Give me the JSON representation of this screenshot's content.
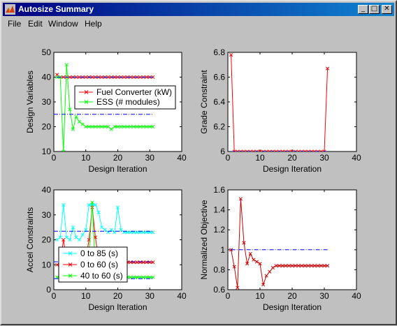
{
  "window": {
    "title": "Autosize Summary",
    "buttons": {
      "minimize": "_",
      "maximize": "□",
      "close": "✕"
    }
  },
  "menu": [
    "File",
    "Edit",
    "Window",
    "Help"
  ],
  "colors": {
    "red": "#ff0000",
    "green": "#00ff00",
    "cyan": "#00ffff",
    "blue": "#0000ff",
    "darkred": "#cc0000"
  },
  "chart_data": [
    {
      "type": "line",
      "xlabel": "Design Iteration",
      "ylabel": "Design Variables",
      "xlim": [
        0,
        40
      ],
      "ylim": [
        10,
        50
      ],
      "xticks": [
        0,
        10,
        20,
        30,
        40
      ],
      "yticks": [
        10,
        20,
        30,
        40,
        50
      ],
      "legend": {
        "placement": "right-middle",
        "entries": [
          {
            "name": "Fuel Converter (kW)",
            "color": "#ff0000"
          },
          {
            "name": "ESS (# modules)",
            "color": "#00ff00"
          }
        ]
      },
      "series": [
        {
          "name": "Fuel Converter (kW)",
          "color": "#ff0000",
          "marker": "x",
          "x": [
            1,
            2,
            3,
            4,
            5,
            6,
            7,
            8,
            9,
            10,
            11,
            12,
            13,
            14,
            15,
            16,
            17,
            18,
            19,
            20,
            21,
            22,
            23,
            24,
            25,
            26,
            27,
            28,
            29,
            30,
            31
          ],
          "y": [
            41,
            40,
            40,
            40,
            40,
            40,
            40,
            40,
            40,
            40,
            40,
            40,
            40,
            40,
            40,
            40,
            40,
            40,
            40,
            40,
            40,
            40,
            40,
            40,
            40,
            40,
            40,
            40,
            40,
            40,
            40
          ]
        },
        {
          "name": "ESS (# modules)",
          "color": "#00ff00",
          "marker": "x",
          "x": [
            1,
            2,
            3,
            4,
            5,
            6,
            7,
            8,
            9,
            10,
            11,
            12,
            13,
            14,
            15,
            16,
            17,
            18,
            19,
            20,
            21,
            22,
            23,
            24,
            25,
            26,
            27,
            28,
            29,
            30,
            31
          ],
          "y": [
            40,
            40,
            10,
            45,
            27,
            19,
            24,
            22,
            21,
            20,
            20,
            20,
            20,
            20,
            20,
            20,
            20,
            19,
            20,
            20,
            20,
            20,
            20,
            20,
            20,
            20,
            20,
            20,
            20,
            20,
            20
          ]
        },
        {
          "name": "",
          "color": "#0000ff",
          "style": "dashdot",
          "x": [
            0,
            31
          ],
          "y": [
            25,
            25
          ]
        },
        {
          "name": "",
          "color": "#0000ff",
          "style": "dashdot",
          "x": [
            1,
            31
          ],
          "y": [
            40,
            40
          ]
        }
      ]
    },
    {
      "type": "line",
      "xlabel": "Design Iteration",
      "ylabel": "Grade Constraint",
      "xlim": [
        0,
        40
      ],
      "ylim": [
        6,
        6.8
      ],
      "xticks": [
        0,
        10,
        20,
        30,
        40
      ],
      "yticks": [
        6,
        6.2,
        6.4,
        6.6,
        6.8
      ],
      "series": [
        {
          "name": "",
          "color": "#ff0000",
          "marker": "x",
          "x": [
            1,
            2,
            3,
            4,
            5,
            6,
            7,
            8,
            9,
            10,
            11,
            12,
            13,
            14,
            15,
            16,
            17,
            18,
            19,
            20,
            21,
            22,
            23,
            24,
            25,
            26,
            27,
            28,
            29,
            30,
            31
          ],
          "y": [
            6.78,
            6.0,
            6.0,
            6.0,
            6.0,
            6.0,
            6.0,
            6.0,
            6.0,
            6.0,
            6.0,
            6.0,
            6.0,
            6.0,
            6.0,
            6.0,
            6.0,
            6.0,
            6.0,
            6.0,
            6.0,
            6.0,
            6.0,
            6.0,
            6.0,
            6.0,
            6.0,
            6.0,
            6.0,
            6.0,
            6.67
          ]
        },
        {
          "name": "",
          "color": "#0000ff",
          "style": "dashdot",
          "x": [
            1,
            31
          ],
          "y": [
            6.0,
            6.0
          ]
        }
      ]
    },
    {
      "type": "line",
      "xlabel": "Design Iteration",
      "ylabel": "Accel Constraints",
      "xlim": [
        0,
        40
      ],
      "ylim": [
        0,
        40
      ],
      "xticks": [
        0,
        10,
        20,
        30,
        40
      ],
      "yticks": [
        0,
        10,
        20,
        30,
        40
      ],
      "legend": {
        "placement": "bottom-left",
        "entries": [
          {
            "name": "0 to 85 (s)",
            "color": "#00ffff"
          },
          {
            "name": "0 to 60 (s)",
            "color": "#ff0000"
          },
          {
            "name": "40 to 60 (s)",
            "color": "#00ff00"
          }
        ]
      },
      "series": [
        {
          "name": "0 to 85 (s)",
          "color": "#00ffff",
          "marker": "x",
          "x": [
            1,
            2,
            3,
            4,
            5,
            6,
            7,
            8,
            9,
            10,
            11,
            12,
            13,
            14,
            15,
            16,
            17,
            18,
            19,
            20,
            21,
            22,
            23,
            24,
            25,
            26,
            27,
            28,
            29,
            30,
            31
          ],
          "y": [
            20,
            21,
            34,
            21,
            20,
            25,
            21,
            20,
            22,
            24,
            34,
            34,
            34,
            31,
            25,
            24,
            23,
            24,
            23,
            33,
            24,
            23,
            23,
            23,
            23,
            23,
            23,
            23,
            23,
            23,
            23
          ]
        },
        {
          "name": "0 to 60 (s)",
          "color": "#ff0000",
          "marker": "x",
          "x": [
            1,
            2,
            3,
            4,
            5,
            6,
            7,
            8,
            9,
            10,
            11,
            12,
            13,
            14,
            15,
            16,
            17,
            18,
            19,
            20,
            21,
            22,
            23,
            24,
            25,
            26,
            27,
            28,
            29,
            30,
            31
          ],
          "y": [
            10,
            10,
            20,
            12,
            11,
            12,
            11,
            11,
            11,
            12,
            20,
            33,
            21,
            12,
            11,
            11,
            11,
            11,
            11,
            11,
            11,
            11,
            11,
            11,
            11,
            11,
            11,
            11,
            11,
            11,
            11
          ]
        },
        {
          "name": "40 to 60 (s)",
          "color": "#00ff00",
          "marker": "x",
          "x": [
            1,
            2,
            3,
            4,
            5,
            6,
            7,
            8,
            9,
            10,
            11,
            12,
            13,
            14,
            15,
            16,
            17,
            18,
            19,
            20,
            21,
            22,
            23,
            24,
            25,
            26,
            27,
            28,
            29,
            30,
            31
          ],
          "y": [
            5,
            5,
            11,
            6,
            5,
            5,
            5,
            5,
            5,
            6,
            14,
            35,
            8,
            5,
            5,
            5,
            5,
            5,
            5,
            5,
            5,
            5,
            5,
            5,
            5,
            5,
            5,
            5,
            5,
            5,
            5
          ]
        },
        {
          "name": "",
          "color": "#0000ff",
          "style": "dashdot",
          "x": [
            0,
            31
          ],
          "y": [
            23.4,
            23.4
          ]
        },
        {
          "name": "",
          "color": "#0000ff",
          "style": "dashdot",
          "x": [
            0,
            31
          ],
          "y": [
            11.2,
            11.2
          ]
        },
        {
          "name": "",
          "color": "#0000ff",
          "style": "dashdot",
          "x": [
            0,
            31
          ],
          "y": [
            4.4,
            4.4
          ]
        }
      ]
    },
    {
      "type": "line",
      "xlabel": "Design Iteration",
      "ylabel": "Normalized Objective",
      "xlim": [
        0,
        40
      ],
      "ylim": [
        0.6,
        1.6
      ],
      "xticks": [
        0,
        10,
        20,
        30,
        40
      ],
      "yticks": [
        0.6,
        0.8,
        1,
        1.2,
        1.4,
        1.6
      ],
      "series": [
        {
          "name": "",
          "color": "#cc0000",
          "marker": "x",
          "x": [
            1,
            2,
            3,
            4,
            5,
            6,
            7,
            8,
            9,
            10,
            11,
            12,
            13,
            14,
            15,
            16,
            17,
            18,
            19,
            20,
            21,
            22,
            23,
            24,
            25,
            26,
            27,
            28,
            29,
            30,
            31
          ],
          "y": [
            1.0,
            0.83,
            0.62,
            1.51,
            1.07,
            0.86,
            0.96,
            0.9,
            0.88,
            0.86,
            0.65,
            0.74,
            0.78,
            0.82,
            0.84,
            0.84,
            0.84,
            0.84,
            0.84,
            0.84,
            0.84,
            0.84,
            0.84,
            0.84,
            0.84,
            0.84,
            0.84,
            0.84,
            0.84,
            0.84,
            0.84
          ]
        },
        {
          "name": "",
          "color": "#0000ff",
          "style": "dashdot",
          "x": [
            1,
            31
          ],
          "y": [
            1.0,
            1.0
          ]
        }
      ]
    }
  ]
}
